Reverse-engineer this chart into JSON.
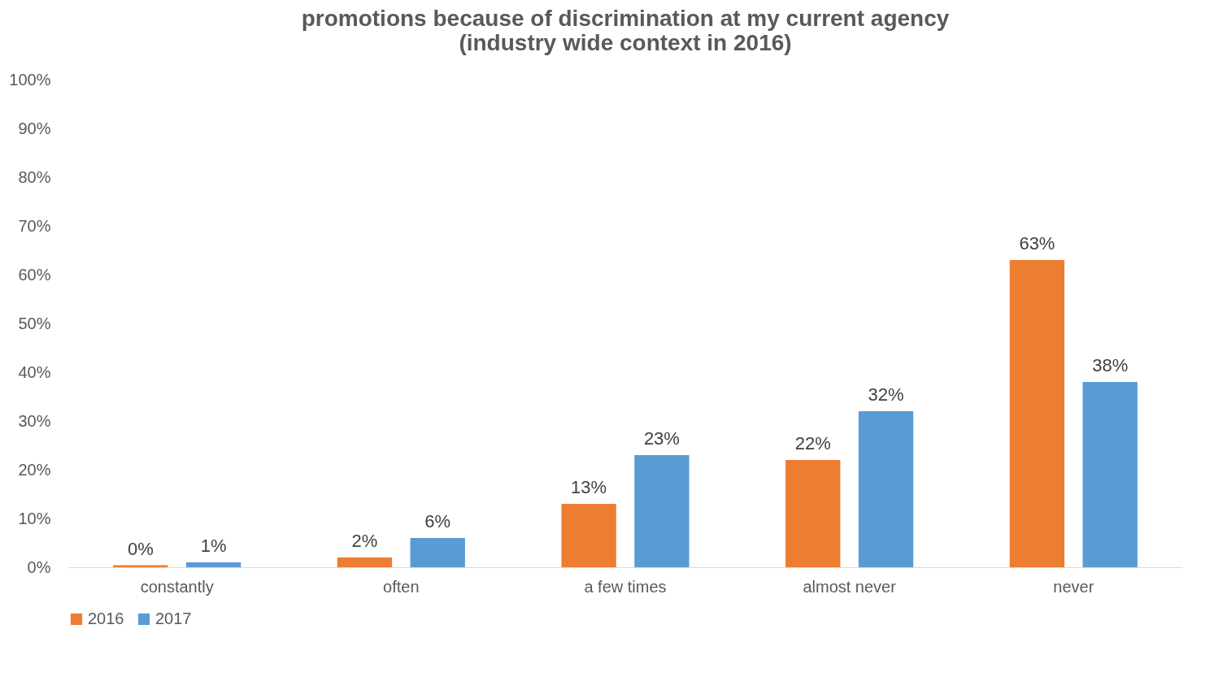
{
  "chart_data": {
    "type": "bar",
    "title": "promotions because of discrimination at my current agency\n(industry wide context in 2016)",
    "categories": [
      "constantly",
      "often",
      "a few times",
      "almost never",
      "never"
    ],
    "series": [
      {
        "name": "2016",
        "color": "#ed7d31",
        "values": [
          0.4,
          2,
          13,
          22,
          63
        ],
        "value_labels": [
          "0%",
          "2%",
          "13%",
          "22%",
          "63%"
        ]
      },
      {
        "name": "2017",
        "color": "#5b9bd5",
        "values": [
          1,
          6,
          23,
          32,
          38
        ],
        "value_labels": [
          "1%",
          "6%",
          "23%",
          "32%",
          "38%"
        ]
      }
    ],
    "ylim": [
      0,
      100
    ],
    "yticks": [
      {
        "value": 0,
        "label": "0%"
      },
      {
        "value": 10,
        "label": "10%"
      },
      {
        "value": 20,
        "label": "20%"
      },
      {
        "value": 30,
        "label": "30%"
      },
      {
        "value": 40,
        "label": "40%"
      },
      {
        "value": 50,
        "label": "50%"
      },
      {
        "value": 60,
        "label": "60%"
      },
      {
        "value": 70,
        "label": "70%"
      },
      {
        "value": 80,
        "label": "80%"
      },
      {
        "value": 90,
        "label": "90%"
      },
      {
        "value": 100,
        "label": "100%"
      }
    ],
    "legend": "bottom",
    "grid": false
  }
}
